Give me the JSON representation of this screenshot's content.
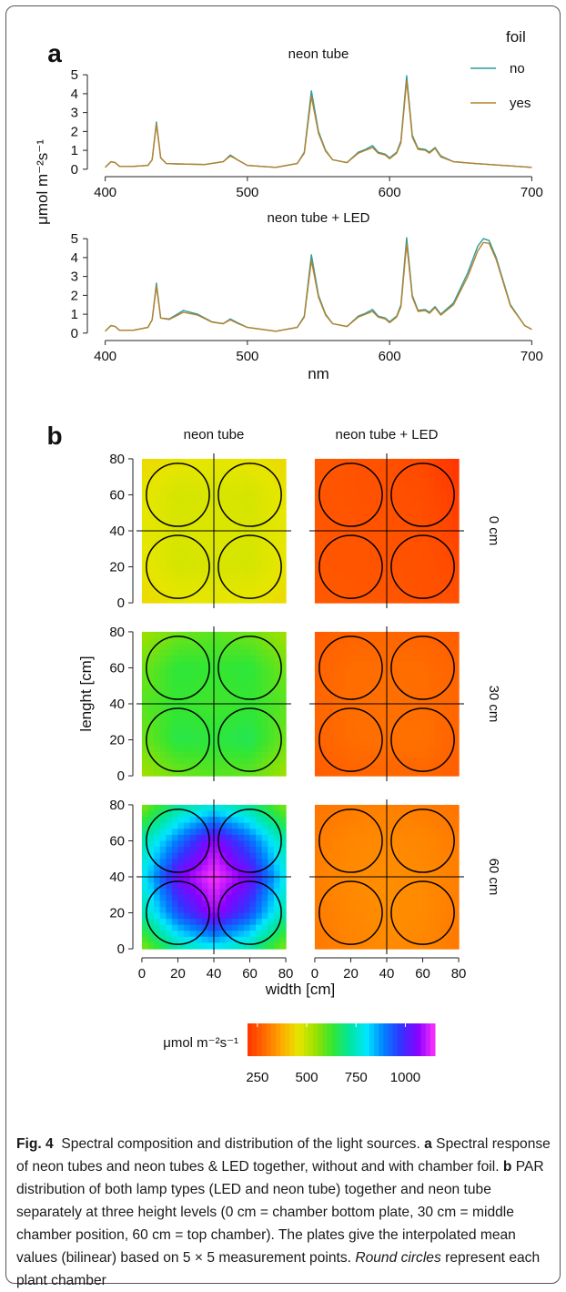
{
  "panel_a": {
    "label": "a",
    "legend_title": "foil",
    "legend_items": [
      {
        "label": "no",
        "color": "#2a9d9f"
      },
      {
        "label": "yes",
        "color": "#b8802a"
      }
    ],
    "y_axis_label": "μmol m⁻²s⁻¹",
    "x_axis_label": "nm"
  },
  "panel_b": {
    "label": "b",
    "y_axis_label": "lenght [cm]",
    "x_axis_label": "width [cm]",
    "colorbar_label": "μmol m⁻²s⁻¹",
    "colorbar_ticks": [
      "250",
      "500",
      "750",
      "1000"
    ],
    "colorbar_range": [
      200,
      1150
    ],
    "colorbar_colors": [
      "#ff3300",
      "#ff6a00",
      "#ffaa00",
      "#e6e600",
      "#9be000",
      "#33e633",
      "#00e6a0",
      "#00e6ff",
      "#0080ff",
      "#3333ff",
      "#8800ff",
      "#ff33ff"
    ]
  },
  "chart_data": [
    {
      "type": "line",
      "title": "neon tube",
      "xlabel": "",
      "ylabel": "μmol m⁻²s⁻¹",
      "xlim": [
        390,
        710
      ],
      "ylim": [
        -0.2,
        5.2
      ],
      "x_ticks": [
        400,
        500,
        600,
        700
      ],
      "y_ticks": [
        0,
        1,
        2,
        3,
        4,
        5
      ],
      "legend": "top-right",
      "series": [
        {
          "name": "no",
          "color": "#2a9d9f",
          "x": [
            400,
            404,
            407,
            410,
            420,
            430,
            433,
            436,
            439,
            443,
            450,
            470,
            483,
            488,
            493,
            500,
            520,
            535,
            540,
            545,
            550,
            555,
            560,
            570,
            578,
            583,
            588,
            592,
            597,
            600,
            605,
            608,
            612,
            616,
            620,
            625,
            628,
            632,
            636,
            645,
            660,
            680,
            700
          ],
          "y": [
            0.1,
            0.4,
            0.35,
            0.15,
            0.15,
            0.2,
            0.5,
            2.5,
            0.6,
            0.3,
            0.28,
            0.25,
            0.4,
            0.75,
            0.5,
            0.2,
            0.1,
            0.3,
            0.9,
            4.15,
            2.0,
            1.0,
            0.5,
            0.35,
            0.9,
            1.05,
            1.25,
            0.9,
            0.8,
            0.6,
            0.9,
            1.5,
            4.95,
            1.8,
            1.1,
            1.05,
            0.9,
            1.15,
            0.7,
            0.4,
            0.3,
            0.2,
            0.1
          ]
        },
        {
          "name": "yes",
          "color": "#b8802a",
          "x": [
            400,
            404,
            407,
            410,
            420,
            430,
            433,
            436,
            439,
            443,
            450,
            470,
            483,
            488,
            493,
            500,
            520,
            535,
            540,
            545,
            550,
            555,
            560,
            570,
            578,
            583,
            588,
            592,
            597,
            600,
            605,
            608,
            612,
            616,
            620,
            625,
            628,
            632,
            636,
            645,
            660,
            680,
            700
          ],
          "y": [
            0.1,
            0.4,
            0.35,
            0.15,
            0.15,
            0.2,
            0.5,
            2.4,
            0.6,
            0.3,
            0.28,
            0.25,
            0.4,
            0.7,
            0.5,
            0.2,
            0.1,
            0.3,
            0.85,
            3.85,
            1.9,
            0.95,
            0.5,
            0.35,
            0.85,
            1.0,
            1.15,
            0.85,
            0.75,
            0.55,
            0.85,
            1.4,
            4.7,
            1.7,
            1.05,
            1.0,
            0.85,
            1.1,
            0.65,
            0.4,
            0.3,
            0.2,
            0.1
          ]
        }
      ]
    },
    {
      "type": "line",
      "title": "neon tube + LED",
      "xlabel": "nm",
      "ylabel": "μmol m⁻²s⁻¹",
      "xlim": [
        390,
        710
      ],
      "ylim": [
        -0.2,
        5.2
      ],
      "x_ticks": [
        400,
        500,
        600,
        700
      ],
      "y_ticks": [
        0,
        1,
        2,
        3,
        4,
        5
      ],
      "series": [
        {
          "name": "no",
          "color": "#2a9d9f",
          "x": [
            400,
            404,
            407,
            410,
            420,
            430,
            433,
            436,
            439,
            445,
            455,
            465,
            475,
            483,
            488,
            493,
            500,
            520,
            535,
            540,
            545,
            550,
            555,
            560,
            570,
            578,
            583,
            588,
            592,
            597,
            600,
            605,
            608,
            612,
            616,
            620,
            625,
            628,
            632,
            636,
            645,
            655,
            662,
            666,
            670,
            675,
            685,
            695,
            700
          ],
          "y": [
            0.1,
            0.4,
            0.35,
            0.15,
            0.15,
            0.3,
            0.7,
            2.65,
            0.8,
            0.75,
            1.2,
            1.0,
            0.6,
            0.5,
            0.75,
            0.55,
            0.3,
            0.1,
            0.3,
            0.9,
            4.15,
            2.0,
            1.0,
            0.5,
            0.35,
            0.9,
            1.05,
            1.25,
            0.9,
            0.8,
            0.6,
            0.9,
            1.5,
            5.05,
            2.0,
            1.2,
            1.25,
            1.1,
            1.4,
            1.0,
            1.6,
            3.2,
            4.6,
            5.0,
            4.9,
            4.0,
            1.5,
            0.4,
            0.2
          ]
        },
        {
          "name": "yes",
          "color": "#b8802a",
          "x": [
            400,
            404,
            407,
            410,
            420,
            430,
            433,
            436,
            439,
            445,
            455,
            465,
            475,
            483,
            488,
            493,
            500,
            520,
            535,
            540,
            545,
            550,
            555,
            560,
            570,
            578,
            583,
            588,
            592,
            597,
            600,
            605,
            608,
            612,
            616,
            620,
            625,
            628,
            632,
            636,
            645,
            655,
            662,
            666,
            670,
            675,
            685,
            695,
            700
          ],
          "y": [
            0.1,
            0.4,
            0.35,
            0.15,
            0.15,
            0.3,
            0.7,
            2.5,
            0.8,
            0.72,
            1.1,
            0.95,
            0.58,
            0.5,
            0.7,
            0.52,
            0.3,
            0.1,
            0.3,
            0.85,
            3.85,
            1.9,
            0.95,
            0.5,
            0.35,
            0.85,
            1.0,
            1.15,
            0.85,
            0.75,
            0.55,
            0.85,
            1.4,
            4.75,
            1.9,
            1.15,
            1.2,
            1.05,
            1.35,
            0.95,
            1.5,
            3.0,
            4.35,
            4.8,
            4.75,
            3.9,
            1.45,
            0.4,
            0.2
          ]
        }
      ]
    },
    {
      "type": "heatmap",
      "title": "neon tube",
      "facet": "0 cm",
      "xlabel": "width [cm]",
      "ylabel": "lenght [cm]",
      "xlim": [
        -3,
        83
      ],
      "ylim": [
        -3,
        83
      ],
      "x_ticks": [
        0,
        20,
        40,
        60,
        80
      ],
      "y_ticks": [
        0,
        20,
        40,
        60,
        80
      ],
      "grid_x": [
        0,
        20,
        40,
        60,
        80
      ],
      "grid_y": [
        80,
        60,
        40,
        20,
        0
      ],
      "values": [
        [
          440,
          455,
          460,
          455,
          440
        ],
        [
          455,
          480,
          475,
          480,
          455
        ],
        [
          460,
          475,
          470,
          475,
          460
        ],
        [
          455,
          480,
          475,
          480,
          455
        ],
        [
          440,
          455,
          460,
          455,
          440
        ]
      ]
    },
    {
      "type": "heatmap",
      "title": "neon tube + LED",
      "facet": "0 cm",
      "xlim": [
        -3,
        83
      ],
      "ylim": [
        -3,
        83
      ],
      "x_ticks": [
        0,
        20,
        40,
        60,
        80
      ],
      "y_ticks": [
        0,
        20,
        40,
        60,
        80
      ],
      "grid_x": [
        0,
        20,
        40,
        60,
        80
      ],
      "grid_y": [
        80,
        60,
        40,
        20,
        0
      ],
      "values": [
        [
          260,
          250,
          245,
          235,
          200
        ],
        [
          255,
          250,
          248,
          240,
          215
        ],
        [
          255,
          252,
          250,
          245,
          225
        ],
        [
          255,
          252,
          250,
          248,
          235
        ],
        [
          262,
          258,
          255,
          250,
          245
        ]
      ]
    },
    {
      "type": "heatmap",
      "title": "neon tube",
      "facet": "30 cm",
      "xlim": [
        -3,
        83
      ],
      "ylim": [
        -3,
        83
      ],
      "x_ticks": [
        0,
        20,
        40,
        60,
        80
      ],
      "y_ticks": [
        0,
        20,
        40,
        60,
        80
      ],
      "grid_x": [
        0,
        20,
        40,
        60,
        80
      ],
      "grid_y": [
        80,
        60,
        40,
        20,
        0
      ],
      "values": [
        [
          540,
          580,
          600,
          580,
          540
        ],
        [
          580,
          640,
          630,
          640,
          580
        ],
        [
          600,
          630,
          620,
          630,
          600
        ],
        [
          580,
          650,
          640,
          660,
          580
        ],
        [
          540,
          580,
          600,
          590,
          540
        ]
      ]
    },
    {
      "type": "heatmap",
      "title": "neon tube + LED",
      "facet": "30 cm",
      "xlim": [
        -3,
        83
      ],
      "ylim": [
        -3,
        83
      ],
      "x_ticks": [
        0,
        20,
        40,
        60,
        80
      ],
      "y_ticks": [
        0,
        20,
        40,
        60,
        80
      ],
      "grid_x": [
        0,
        20,
        40,
        60,
        80
      ],
      "grid_y": [
        80,
        60,
        40,
        20,
        0
      ],
      "values": [
        [
          265,
          275,
          280,
          275,
          265
        ],
        [
          275,
          290,
          290,
          290,
          275
        ],
        [
          280,
          290,
          295,
          290,
          280
        ],
        [
          275,
          290,
          295,
          295,
          275
        ],
        [
          265,
          275,
          280,
          280,
          265
        ]
      ]
    },
    {
      "type": "heatmap",
      "title": "neon tube",
      "facet": "60 cm",
      "xlim": [
        -3,
        83
      ],
      "ylim": [
        -3,
        83
      ],
      "x_ticks": [
        0,
        20,
        40,
        60,
        80
      ],
      "y_ticks": [
        0,
        20,
        40,
        60,
        80
      ],
      "grid_x": [
        0,
        20,
        40,
        60,
        80
      ],
      "grid_y": [
        80,
        60,
        40,
        20,
        0
      ],
      "values": [
        [
          560,
          700,
          760,
          700,
          560
        ],
        [
          720,
          900,
          1080,
          920,
          720
        ],
        [
          780,
          1050,
          1150,
          1050,
          780
        ],
        [
          720,
          940,
          1090,
          950,
          720
        ],
        [
          560,
          720,
          780,
          720,
          560
        ]
      ]
    },
    {
      "type": "heatmap",
      "title": "neon tube + LED",
      "facet": "60 cm",
      "xlim": [
        -3,
        83
      ],
      "ylim": [
        -3,
        83
      ],
      "x_ticks": [
        0,
        20,
        40,
        60,
        80
      ],
      "y_ticks": [
        0,
        20,
        40,
        60,
        80
      ],
      "grid_x": [
        0,
        20,
        40,
        60,
        80
      ],
      "grid_y": [
        80,
        60,
        40,
        20,
        0
      ],
      "values": [
        [
          300,
          310,
          315,
          310,
          300
        ],
        [
          310,
          325,
          330,
          325,
          310
        ],
        [
          315,
          330,
          335,
          330,
          315
        ],
        [
          310,
          325,
          335,
          330,
          310
        ],
        [
          305,
          320,
          330,
          325,
          305
        ]
      ]
    }
  ],
  "caption": {
    "fig_label": "Fig. 4",
    "title": "Spectral composition and distribution of the light sources.",
    "a_label": "a",
    "a_text": "Spectral response of neon tubes and neon tubes & LED together, without and with chamber foil.",
    "b_label": "b",
    "b_text": "PAR distribution of both lamp types (LED and neon tube) together and neon tube separately at three height levels (0 cm = chamber bottom plate, 30 cm = middle chamber position, 60 cm = top chamber). The plates give the interpolated mean values (bilinear) based on 5 × 5 measurement points.",
    "italic_text": "Round circles",
    "end_text": "represent each plant chamber"
  }
}
